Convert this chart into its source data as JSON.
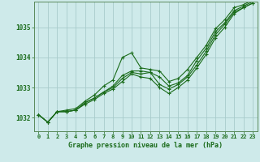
{
  "xlabel": "Graphe pression niveau de la mer (hPa)",
  "background_color": "#ceeaea",
  "grid_color": "#a8cccc",
  "line_color": "#1a6b1a",
  "tick_color": "#1a6b1a",
  "axis_color": "#5a8a5a",
  "ylim": [
    1031.55,
    1035.85
  ],
  "xlim": [
    -0.5,
    23.5
  ],
  "yticks": [
    1032,
    1033,
    1034,
    1035
  ],
  "xticks": [
    0,
    1,
    2,
    3,
    4,
    5,
    6,
    7,
    8,
    9,
    10,
    11,
    12,
    13,
    14,
    15,
    16,
    17,
    18,
    19,
    20,
    21,
    22,
    23
  ],
  "series": [
    [
      1032.1,
      1031.85,
      1032.2,
      1032.25,
      1032.3,
      1032.55,
      1032.75,
      1033.05,
      1033.25,
      1034.0,
      1034.15,
      1033.65,
      1033.6,
      1033.55,
      1033.2,
      1033.3,
      1033.6,
      1034.0,
      1034.4,
      1034.95,
      1035.25,
      1035.65,
      1035.75,
      1035.9
    ],
    [
      1032.1,
      1031.85,
      1032.2,
      1032.2,
      1032.25,
      1032.5,
      1032.65,
      1032.85,
      1033.05,
      1033.4,
      1033.55,
      1033.55,
      1033.5,
      1033.35,
      1033.05,
      1033.15,
      1033.4,
      1033.9,
      1034.3,
      1034.85,
      1035.15,
      1035.55,
      1035.7,
      1035.85
    ],
    [
      1032.1,
      1031.85,
      1032.2,
      1032.2,
      1032.25,
      1032.5,
      1032.65,
      1032.85,
      1033.0,
      1033.3,
      1033.5,
      1033.45,
      1033.5,
      1033.1,
      1032.95,
      1033.1,
      1033.35,
      1033.75,
      1034.2,
      1034.75,
      1035.1,
      1035.5,
      1035.65,
      1035.8
    ],
    [
      1032.1,
      1031.85,
      1032.2,
      1032.2,
      1032.25,
      1032.45,
      1032.6,
      1032.8,
      1032.95,
      1033.2,
      1033.45,
      1033.35,
      1033.3,
      1033.0,
      1032.8,
      1033.0,
      1033.25,
      1033.65,
      1034.1,
      1034.65,
      1035.0,
      1035.45,
      1035.65,
      1035.8
    ]
  ]
}
